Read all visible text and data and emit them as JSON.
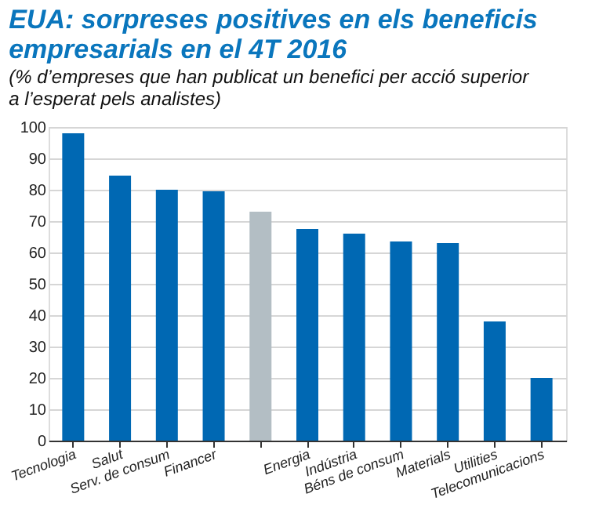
{
  "chart_data": {
    "type": "bar",
    "title": [
      "EUA: sorpreses positives en els beneficis",
      "empresarials en el 4T 2016"
    ],
    "subtitle": [
      "(% d’empreses que han publicat un benefici per acció superior",
      "a l’esperat pels analistes)"
    ],
    "categories": [
      "Tecnologia",
      "Salut",
      "Serv. de consum",
      "Financer",
      null,
      "Energia",
      "Indústria",
      "Béns de consum",
      "Materials",
      "Utilities",
      "Telecomunicacions"
    ],
    "values": [
      98,
      84.5,
      80,
      79.5,
      73,
      67.5,
      66,
      63.5,
      63,
      38,
      20
    ],
    "colors": [
      "#0068b3",
      "#0068b3",
      "#0068b3",
      "#0068b3",
      "#b3bec4",
      "#0068b3",
      "#0068b3",
      "#0068b3",
      "#0068b3",
      "#0068b3",
      "#0068b3"
    ],
    "ylim": [
      0,
      100
    ],
    "yticks": [
      0,
      10,
      20,
      30,
      40,
      50,
      60,
      70,
      80,
      90,
      100
    ],
    "grid": "y"
  }
}
